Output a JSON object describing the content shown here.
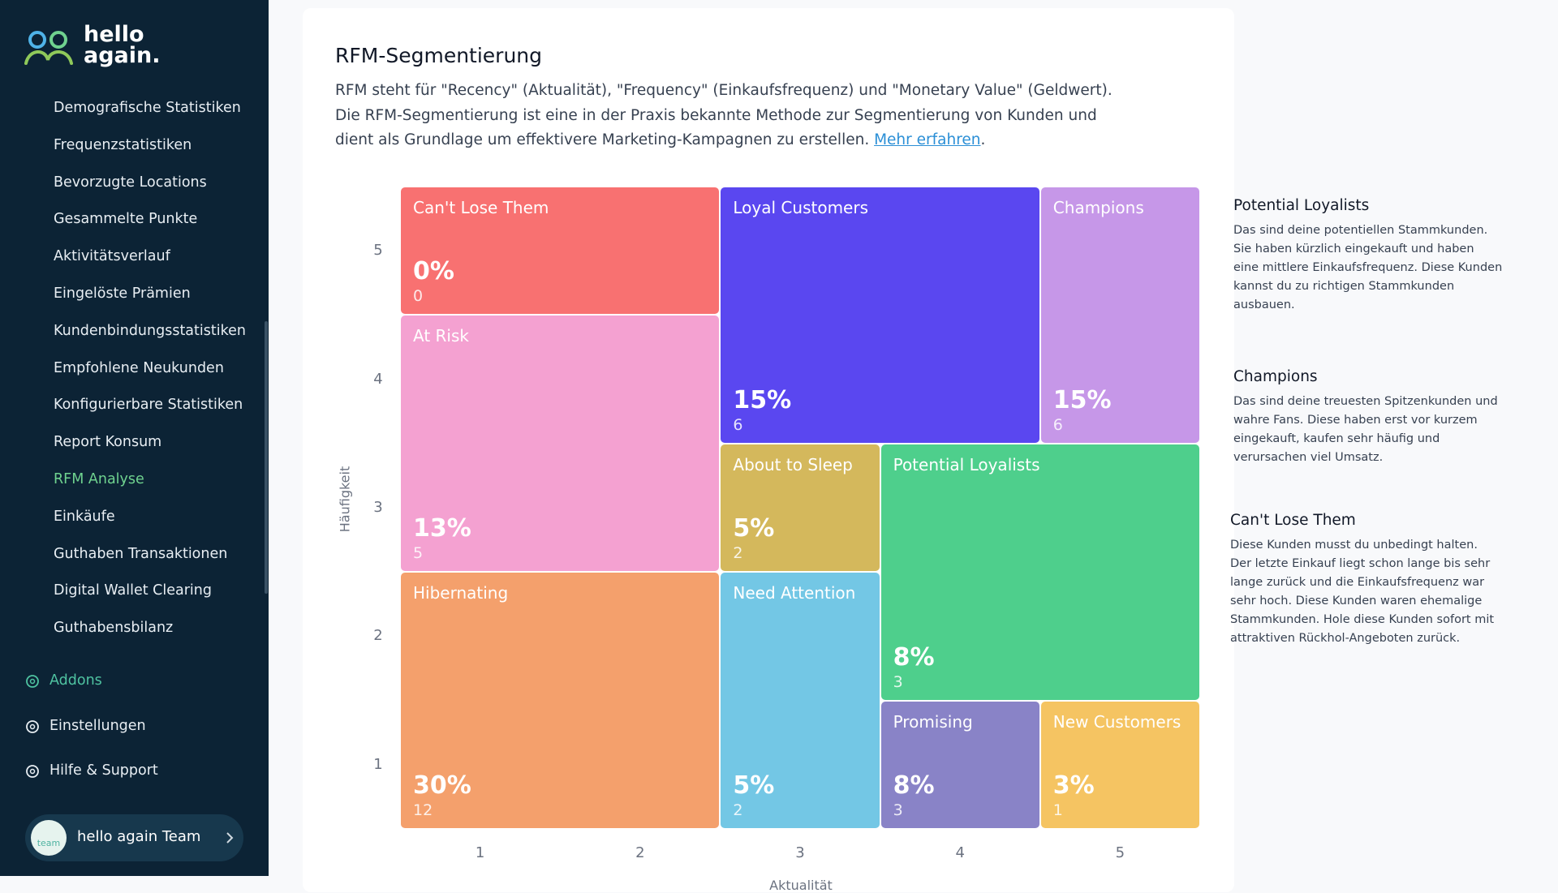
{
  "sidebar": {
    "logo": [
      "hello",
      "again."
    ],
    "items": [
      "Demografische Statistiken",
      "Frequenzstatistiken",
      "Bevorzugte Locations",
      "Gesammelte Punkte",
      "Aktivitätsverlauf",
      "Eingelöste Prämien",
      "Kundenbindungsstatistiken",
      "Empfohlene Neukunden",
      "Konfigurierbare Statistiken",
      "Report Konsum",
      "RFM Analyse",
      "Einkäufe",
      "Guthaben Transaktionen",
      "Digital Wallet Clearing",
      "Guthabensbilanz"
    ],
    "active": 10,
    "footer": [
      "Addons",
      "Einstellungen",
      "Hilfe & Support"
    ],
    "user": "hello again Team",
    "avatar": "team"
  },
  "header": {
    "title": "RFM-Segmentierung",
    "lines": [
      "RFM steht für \"Recency\" (Aktualität), \"Frequency\" (Einkaufsfrequenz) und \"Monetary Value\" (Geldwert).",
      "Die RFM-Segmentierung ist eine in der Praxis bekannte Methode zur Segmentierung von Kunden und",
      "dient als Grundlage um effektivere Marketing-Kampagnen zu erstellen. "
    ],
    "link": "Mehr erfahren",
    "suffix": "."
  },
  "grid": {
    "y_label": "Häufigkeit",
    "x_label": "Aktualität",
    "yticks": [
      5,
      4,
      3,
      2,
      1
    ],
    "xticks": [
      1,
      2,
      3,
      4,
      5
    ],
    "segments": [
      {
        "name": "Can't Lose Them",
        "percent": "0%",
        "count": 0,
        "color": "#f87171"
      },
      {
        "name": "Loyal Customers",
        "percent": "15%",
        "count": 6,
        "color": "#5a47f0"
      },
      {
        "name": "Champions",
        "percent": "15%",
        "count": 6,
        "color": "#c697e8"
      },
      {
        "name": "At Risk",
        "percent": "13%",
        "count": 5,
        "color": "#f4a1d1"
      },
      {
        "name": "About to Sleep",
        "percent": "5%",
        "count": 2,
        "color": "#d4b85c"
      },
      {
        "name": "Potential Loyalists",
        "percent": "8%",
        "count": 3,
        "color": "#4ecf8c"
      },
      {
        "name": "Hibernating",
        "percent": "30%",
        "count": 12,
        "color": "#f4a06c"
      },
      {
        "name": "Need Attention",
        "percent": "5%",
        "count": 2,
        "color": "#73c7e5"
      },
      {
        "name": "Promising",
        "percent": "8%",
        "count": 3,
        "color": "#8983c7"
      },
      {
        "name": "New Customers",
        "percent": "3%",
        "count": 1,
        "color": "#f5c462"
      }
    ]
  },
  "descriptions": [
    {
      "title": "Potential Loyalists",
      "lines": [
        "Das sind deine potentiellen Stammkunden.",
        "Sie haben kürzlich eingekauft und haben",
        "eine mittlere Einkaufsfrequenz. Diese Kunden",
        "kannst du zu richtigen Stammkunden",
        "ausbauen."
      ]
    },
    {
      "title": "Champions",
      "lines": [
        "Das sind deine treuesten Spitzenkunden und",
        "wahre Fans. Diese haben erst vor kurzem",
        "eingekauft, kaufen sehr häufig und",
        "verursachen viel Umsatz."
      ]
    },
    {
      "title": "Can't Lose Them",
      "lines": [
        "Diese Kunden musst du unbedingt halten.",
        "Der letzte Einkauf liegt schon lange bis sehr",
        "lange zurück und die Einkaufsfrequenz war",
        "sehr hoch. Diese Kunden waren ehemalige",
        "Stammkunden. Hole diese Kunden sofort mit",
        "attraktiven Rückhol-Angeboten zurück."
      ]
    }
  ]
}
